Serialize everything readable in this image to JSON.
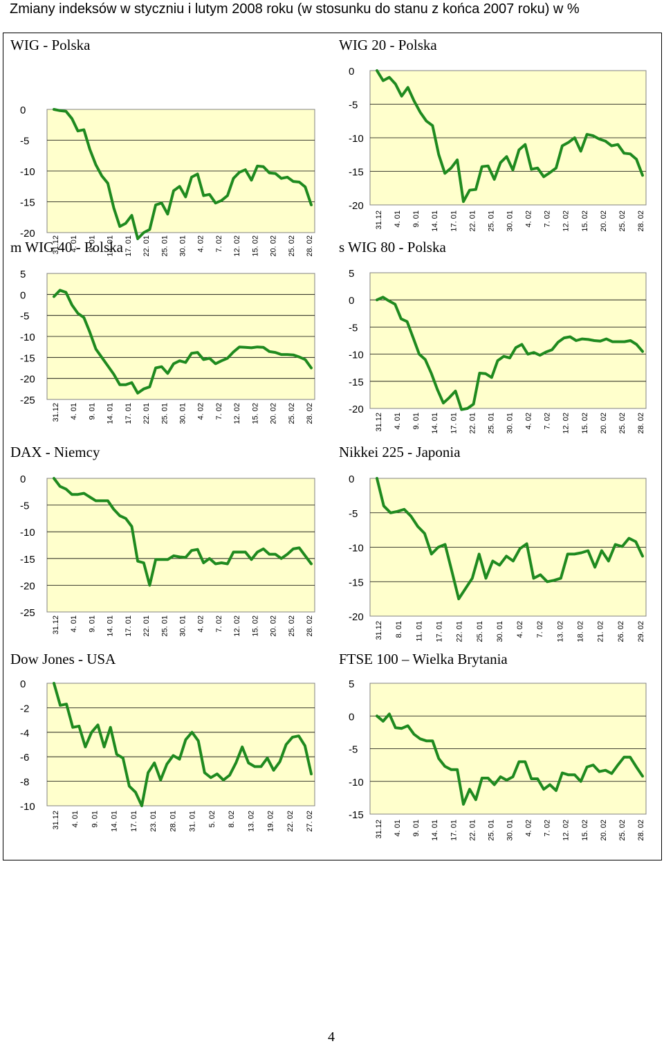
{
  "page_title": "Zmiany indeksów w styczniu i lutym 2008 roku (w stosunku do stanu z końca 2007 roku) w %",
  "page_number": "4",
  "colors": {
    "plot_bg": "#ffffcc",
    "line": "#1f8a1f",
    "grid": "#000000"
  },
  "chart_data": [
    {
      "type": "line",
      "title": "WIG - Polska",
      "yticks": [
        0,
        -5,
        -10,
        -15,
        -20
      ],
      "ylim": [
        -20,
        0
      ],
      "xticks": [
        "31.12",
        "4. 01",
        "9. 01",
        "14. 01",
        "17. 01",
        "22. 01",
        "25. 01",
        "30. 01",
        "4. 02",
        "7. 02",
        "12. 02",
        "15. 02",
        "20. 02",
        "25. 02",
        "28. 02"
      ],
      "values": [
        0,
        -0.2,
        -0.3,
        -1.5,
        -3.5,
        -3.3,
        -6.5,
        -9,
        -10.8,
        -12,
        -16,
        -19,
        -18.5,
        -17.2,
        -21,
        -20,
        -19.5,
        -15.5,
        -15.2,
        -17,
        -13.2,
        -12.5,
        -14.2,
        -11,
        -10.5,
        -14,
        -13.8,
        -15.2,
        -14.8,
        -14,
        -11.2,
        -10.2,
        -9.8,
        -11.5,
        -9.2,
        -9.3,
        -10.3,
        -10.4,
        -11.2,
        -11,
        -11.7,
        -11.8,
        -12.6,
        -15.5
      ]
    },
    {
      "type": "line",
      "title": "WIG 20 - Polska",
      "yticks": [
        0,
        -5,
        -10,
        -15,
        -20
      ],
      "ylim": [
        -20,
        0
      ],
      "xticks": [
        "31.12",
        "4. 01",
        "9. 01",
        "14. 01",
        "17. 01",
        "22. 01",
        "25. 01",
        "30. 01",
        "4. 02",
        "7. 02",
        "12. 02",
        "15. 02",
        "20. 02",
        "25. 02",
        "28. 02"
      ],
      "values": [
        0,
        -1.5,
        -1,
        -2,
        -3.8,
        -2.5,
        -4.5,
        -6.2,
        -7.5,
        -8.2,
        -12.5,
        -15.3,
        -14.5,
        -13.3,
        -19.5,
        -17.8,
        -17.7,
        -14.3,
        -14.2,
        -16.2,
        -13.7,
        -12.8,
        -14.8,
        -11.8,
        -11,
        -14.7,
        -14.5,
        -15.8,
        -15.2,
        -14.5,
        -11.2,
        -10.7,
        -10,
        -12,
        -9.5,
        -9.7,
        -10.2,
        -10.5,
        -11.2,
        -11,
        -12.3,
        -12.4,
        -13.2,
        -15.6
      ]
    },
    {
      "type": "line",
      "title": "m WIG 40 - Polska",
      "yticks": [
        5,
        0,
        -5,
        -10,
        -15,
        -20,
        -25
      ],
      "ylim": [
        -25,
        5
      ],
      "xticks": [
        "31.12",
        "4. 01",
        "9. 01",
        "14. 01",
        "17. 01",
        "22. 01",
        "25. 01",
        "30. 01",
        "4. 02",
        "7. 02",
        "12. 02",
        "15. 02",
        "20. 02",
        "25. 02",
        "28. 02"
      ],
      "values": [
        -0.5,
        1,
        0.5,
        -2.5,
        -4.5,
        -5.5,
        -9,
        -13,
        -15,
        -17,
        -19,
        -21.5,
        -21.5,
        -21,
        -23.5,
        -22.5,
        -22,
        -17.5,
        -17.2,
        -18.8,
        -16.5,
        -15.8,
        -16.2,
        -14,
        -13.8,
        -15.5,
        -15.2,
        -16.5,
        -15.8,
        -15.2,
        -13.7,
        -12.5,
        -12.6,
        -12.7,
        -12.5,
        -12.6,
        -13.6,
        -13.8,
        -14.3,
        -14.3,
        -14.4,
        -14.9,
        -15.5,
        -17.5
      ]
    },
    {
      "type": "line",
      "title": "s WIG 80 - Polska",
      "yticks": [
        5,
        0,
        -5,
        -10,
        -15,
        -20
      ],
      "ylim": [
        -20,
        5
      ],
      "xticks": [
        "31.12",
        "4. 01",
        "9. 01",
        "14. 01",
        "17. 01",
        "22. 01",
        "25. 01",
        "30. 01",
        "4. 02",
        "7. 02",
        "12. 02",
        "15. 02",
        "20. 02",
        "25. 02",
        "28. 02"
      ],
      "values": [
        0,
        0.5,
        -0.2,
        -0.8,
        -3.5,
        -4,
        -7,
        -10,
        -11,
        -13.5,
        -16.5,
        -19,
        -18,
        -16.8,
        -20.2,
        -20,
        -19.2,
        -13.5,
        -13.6,
        -14.3,
        -11.2,
        -10.4,
        -10.7,
        -8.8,
        -8.2,
        -10,
        -9.7,
        -10.2,
        -9.6,
        -9.2,
        -7.8,
        -7,
        -6.8,
        -7.5,
        -7.2,
        -7.3,
        -7.5,
        -7.6,
        -7.2,
        -7.7,
        -7.7,
        -7.7,
        -7.5,
        -8.2,
        -9.5
      ]
    },
    {
      "type": "line",
      "title": "DAX - Niemcy",
      "yticks": [
        0,
        -5,
        -10,
        -15,
        -20,
        -25
      ],
      "ylim": [
        -25,
        0
      ],
      "xticks": [
        "31.12",
        "4. 01",
        "9. 01",
        "14. 01",
        "17. 01",
        "22. 01",
        "25. 01",
        "30. 01",
        "4. 02",
        "7. 02",
        "12. 02",
        "15. 02",
        "20. 02",
        "25. 02",
        "28. 02"
      ],
      "values": [
        0,
        -1.5,
        -2,
        -3,
        -3,
        -2.8,
        -3.5,
        -4.2,
        -4.2,
        -4.2,
        -5.8,
        -7,
        -7.5,
        -9,
        -15.5,
        -15.8,
        -20,
        -15.2,
        -15.2,
        -15.2,
        -14.5,
        -14.7,
        -14.8,
        -13.5,
        -13.3,
        -15.8,
        -15,
        -16,
        -15.8,
        -16,
        -13.8,
        -13.8,
        -13.8,
        -15.2,
        -13.8,
        -13.2,
        -14.2,
        -14.2,
        -15,
        -14.2,
        -13.2,
        -13,
        -14.5,
        -16
      ]
    },
    {
      "type": "line",
      "title": "Nikkei 225 - Japonia",
      "yticks": [
        0,
        -5,
        -10,
        -15,
        -20
      ],
      "ylim": [
        -20,
        0
      ],
      "xticks": [
        "31.12",
        "8. 01",
        "11. 01",
        "17. 01",
        "22. 01",
        "25. 01",
        "30. 01",
        "4. 02",
        "7. 02",
        "13. 02",
        "18. 02",
        "21. 02",
        "26. 02",
        "29. 02"
      ],
      "values": [
        0,
        -4,
        -5,
        -4.8,
        -4.5,
        -5.5,
        -7,
        -8,
        -11,
        -10,
        -9.6,
        -13.5,
        -17.5,
        -16,
        -14.5,
        -11,
        -14.5,
        -12,
        -12.6,
        -11.3,
        -12,
        -10.2,
        -9.5,
        -14.5,
        -14,
        -15,
        -14.8,
        -14.5,
        -11,
        -11,
        -10.8,
        -10.5,
        -12.9,
        -10.5,
        -12,
        -9.6,
        -9.9,
        -8.7,
        -9.2,
        -11.3
      ]
    },
    {
      "type": "line",
      "title": "Dow Jones - USA",
      "yticks": [
        0,
        -2,
        -4,
        -6,
        -8,
        -10
      ],
      "ylim": [
        -10,
        0
      ],
      "xticks": [
        "31.12",
        "4. 01",
        "9. 01",
        "14. 01",
        "17. 01",
        "23. 01",
        "28. 01",
        "31. 01",
        "5. 02",
        "8. 02",
        "13. 02",
        "19. 02",
        "22. 02",
        "27. 02"
      ],
      "values": [
        0,
        -1.8,
        -1.7,
        -3.6,
        -3.5,
        -5.2,
        -4,
        -3.4,
        -5.2,
        -3.6,
        -5.8,
        -6.1,
        -8.4,
        -8.9,
        -10,
        -7.3,
        -6.5,
        -7.9,
        -6.6,
        -5.9,
        -6.2,
        -4.6,
        -4,
        -4.7,
        -7.3,
        -7.7,
        -7.4,
        -7.9,
        -7.5,
        -6.5,
        -5.2,
        -6.5,
        -6.8,
        -6.8,
        -6.1,
        -7.1,
        -6.4,
        -5,
        -4.4,
        -4.3,
        -5.1,
        -7.4
      ]
    },
    {
      "type": "line",
      "title": "FTSE 100 – Wielka Brytania",
      "yticks": [
        5,
        0,
        -5,
        -10,
        -15
      ],
      "ylim": [
        -15,
        5
      ],
      "xticks": [
        "31.12",
        "4. 01",
        "9. 01",
        "14. 01",
        "17. 01",
        "22. 01",
        "25. 01",
        "30. 01",
        "4. 02",
        "7. 02",
        "12. 02",
        "15. 02",
        "20. 02",
        "25. 02",
        "28. 02"
      ],
      "values": [
        0,
        -0.8,
        0.3,
        -1.8,
        -1.9,
        -1.5,
        -2.8,
        -3.5,
        -3.8,
        -3.8,
        -6.5,
        -7.7,
        -8.2,
        -8.2,
        -13.5,
        -11.2,
        -12.8,
        -9.5,
        -9.5,
        -10.5,
        -9.3,
        -9.8,
        -9.3,
        -7,
        -7,
        -9.6,
        -9.6,
        -11.2,
        -10.5,
        -11.4,
        -8.7,
        -9,
        -9,
        -10,
        -7.8,
        -7.5,
        -8.5,
        -8.3,
        -8.8,
        -7.5,
        -6.3,
        -6.3,
        -7.8,
        -9.2
      ]
    }
  ]
}
